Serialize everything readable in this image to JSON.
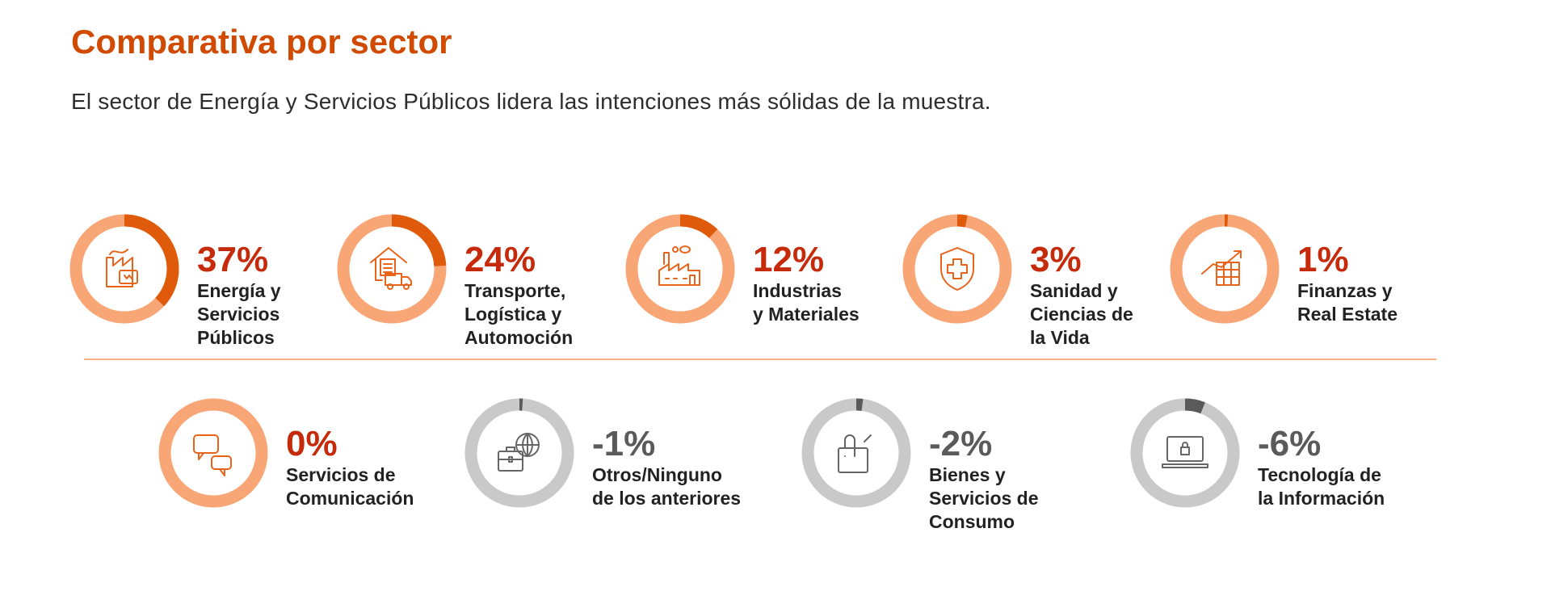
{
  "title": "Comparativa por sector",
  "subtitle": "El sector de Energía y Servicios Públicos lidera las intenciones más sólidas de la muestra.",
  "colors": {
    "accent": "#d04a02",
    "positive_pct": "#c52a0a",
    "negative_pct": "#5a5a5a",
    "ring_light": "#f8a676",
    "ring_gray": "#c9c9c9",
    "segment_dark": "#e05a0c",
    "segment_gray": "#5a5a5a"
  },
  "sectors": [
    {
      "value": 37,
      "pct": "37%",
      "lines": [
        "Energía y",
        "Servicios",
        "Públicos"
      ],
      "icon": "factory-battery-icon"
    },
    {
      "value": 24,
      "pct": "24%",
      "lines": [
        "Transporte,",
        "Logística y",
        "Automoción"
      ],
      "icon": "warehouse-truck-icon"
    },
    {
      "value": 12,
      "pct": "12%",
      "lines": [
        "Industrias",
        "y Materiales"
      ],
      "icon": "factory-icon"
    },
    {
      "value": 3,
      "pct": "3%",
      "lines": [
        "Sanidad y",
        "Ciencias de",
        "la Vida"
      ],
      "icon": "shield-cross-icon"
    },
    {
      "value": 1,
      "pct": "1%",
      "lines": [
        "Finanzas y",
        "Real Estate"
      ],
      "icon": "chart-growth-icon"
    },
    {
      "value": 0,
      "pct": "0%",
      "lines": [
        "Servicios de",
        "Comunicación"
      ],
      "icon": "chat-bubbles-icon"
    },
    {
      "value": -1,
      "pct": "-1%",
      "lines": [
        "Otros/Ninguno",
        "de los anteriores"
      ],
      "icon": "briefcase-globe-icon"
    },
    {
      "value": -2,
      "pct": "-2%",
      "lines": [
        "Bienes y",
        "Servicios de",
        "Consumo"
      ],
      "icon": "shopping-bag-icon"
    },
    {
      "value": -6,
      "pct": "-6%",
      "lines": [
        "Tecnología de",
        "la Información"
      ],
      "icon": "laptop-lock-icon"
    }
  ]
}
